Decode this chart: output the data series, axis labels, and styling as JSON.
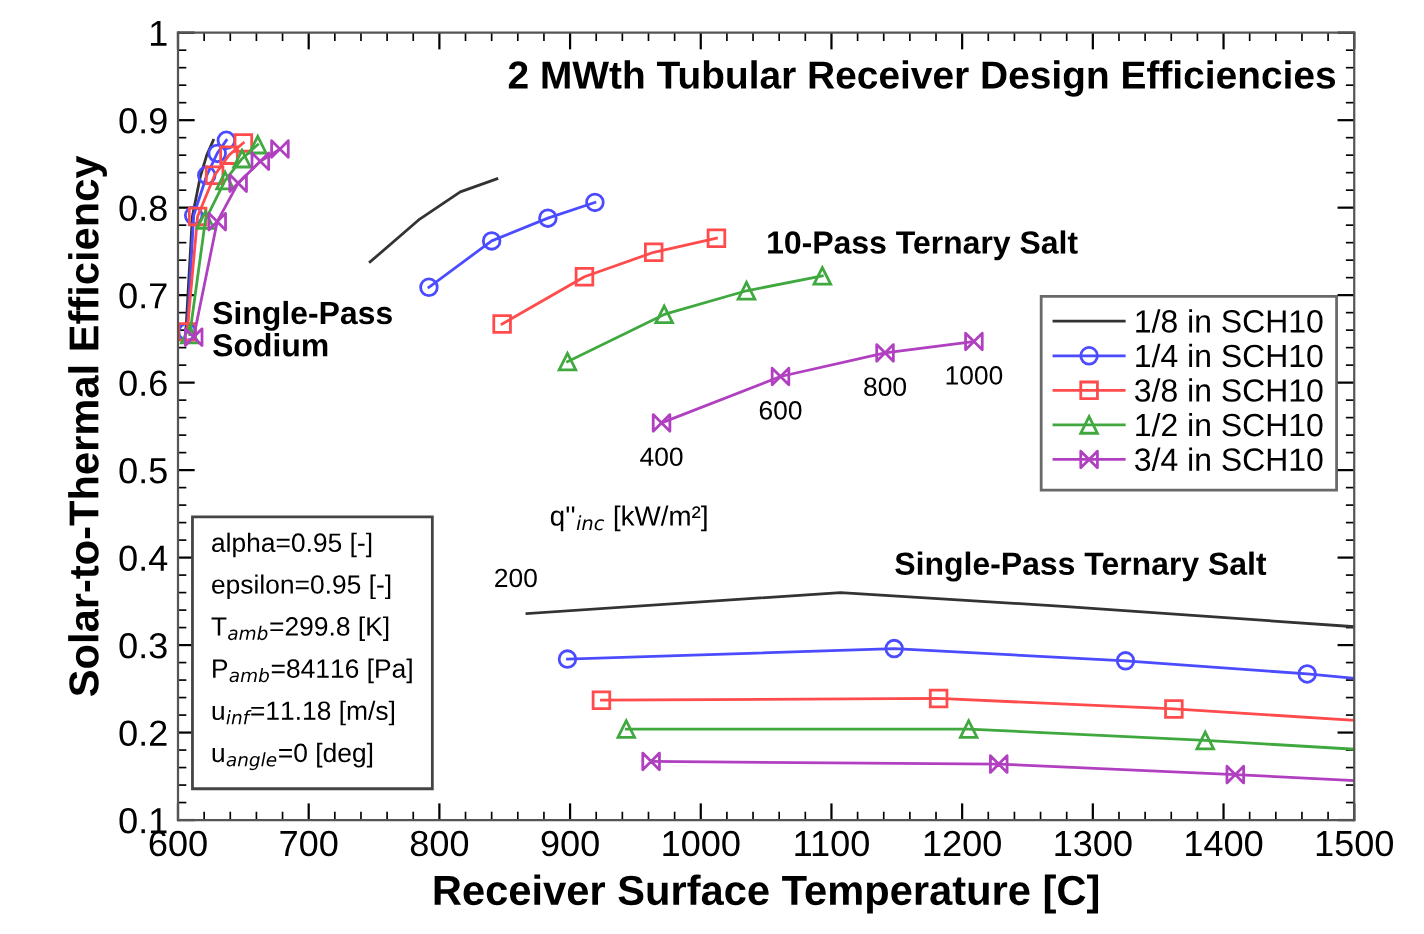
{
  "chart_data": {
    "type": "line",
    "title": "2 MWth Tubular Receiver Design Efficiencies",
    "xlabel": "Receiver Surface Temperature [C]",
    "ylabel": "Solar-to-Thermal Efficiency",
    "xlim": [
      600,
      1500
    ],
    "xticks": [
      600,
      700,
      800,
      900,
      1000,
      1100,
      1200,
      1300,
      1400,
      1500
    ],
    "ylim": [
      0.1,
      1
    ],
    "yticks": [
      0.1,
      0.2,
      0.3,
      0.4,
      0.5,
      0.6,
      0.7,
      0.8,
      0.9,
      1
    ],
    "grid": false,
    "legend": "right",
    "series": [
      {
        "name": "1/8 in SCH10",
        "color": "#333333",
        "marker": "none",
        "x": [
          606,
          611,
          617,
          622,
          627
        ],
        "values": [
          0.658,
          0.79,
          0.835,
          0.86,
          0.877
        ]
      },
      {
        "name": "1/4 in SCH10",
        "color": "#4b4bff",
        "marker": "circle",
        "x": [
          607,
          612,
          622,
          630,
          637
        ],
        "values": [
          0.658,
          0.791,
          0.837,
          0.862,
          0.877
        ]
      },
      {
        "name": "3/8 in SCH10",
        "color": "#ff4b4b",
        "marker": "square",
        "x": [
          607,
          615,
          628,
          639,
          650
        ],
        "values": [
          0.658,
          0.79,
          0.837,
          0.86,
          0.874
        ]
      },
      {
        "name": "1/2 in SCH10",
        "color": "#3fa83f",
        "marker": "triangle",
        "x": [
          609,
          621,
          636,
          649,
          661
        ],
        "values": [
          0.655,
          0.786,
          0.831,
          0.856,
          0.872
        ]
      },
      {
        "name": "3/4 in SCH10",
        "color": "#b040c0",
        "marker": "diamond",
        "x": [
          612,
          630,
          646,
          663,
          678
        ],
        "values": [
          0.652,
          0.784,
          0.828,
          0.853,
          0.867
        ]
      },
      {
        "color": "#333333",
        "marker": "none",
        "x": [
          747,
          785,
          816,
          844
        ],
        "values": [
          0.738,
          0.787,
          0.818,
          0.833
        ]
      },
      {
        "color": "#4b4bff",
        "marker": "circle",
        "x": [
          792,
          840,
          883,
          919
        ],
        "values": [
          0.709,
          0.762,
          0.788,
          0.806
        ]
      },
      {
        "color": "#ff4b4b",
        "marker": "square",
        "x": [
          848,
          911,
          964,
          1012
        ],
        "values": [
          0.667,
          0.721,
          0.749,
          0.765
        ]
      },
      {
        "color": "#3fa83f",
        "marker": "triangle",
        "x": [
          898,
          972,
          1035,
          1093
        ],
        "values": [
          0.624,
          0.678,
          0.705,
          0.722
        ]
      },
      {
        "color": "#b040c0",
        "marker": "diamond",
        "x": [
          970,
          1061,
          1141,
          1209
        ],
        "values": [
          0.554,
          0.607,
          0.634,
          0.647
        ]
      },
      {
        "color": "#333333",
        "marker": "none",
        "x": [
          867,
          1107,
          1280,
          1500
        ],
        "values": [
          0.336,
          0.36,
          0.344,
          0.321
        ]
      },
      {
        "color": "#4b4bff",
        "marker": "circle",
        "x": [
          898,
          1148,
          1325,
          1464,
          1500
        ],
        "values": [
          0.284,
          0.296,
          0.282,
          0.267,
          0.262
        ]
      },
      {
        "color": "#ff4b4b",
        "marker": "square",
        "x": [
          924,
          1182,
          1362,
          1500
        ],
        "values": [
          0.237,
          0.239,
          0.227,
          0.214
        ]
      },
      {
        "color": "#3fa83f",
        "marker": "triangle",
        "x": [
          943,
          1205,
          1386,
          1500
        ],
        "values": [
          0.204,
          0.204,
          0.191,
          0.181
        ]
      },
      {
        "color": "#b040c0",
        "marker": "diamond",
        "x": [
          962,
          1228,
          1409,
          1500
        ],
        "values": [
          0.167,
          0.164,
          0.152,
          0.145
        ]
      }
    ],
    "annotations": [
      "Single-Pass\nSodium",
      "10-Pass Ternary Salt",
      "Single-Pass Ternary Salt",
      "q''$_{inc}$ [kW/m²]",
      {
        "text": "200",
        "x": 867,
        "y": 0.336
      },
      {
        "text": "400",
        "x": 970,
        "y": 0.554
      },
      {
        "text": "600",
        "x": 1061,
        "y": 0.607
      },
      {
        "text": "800",
        "x": 1141,
        "y": 0.634
      },
      {
        "text": "1000",
        "x": 1209,
        "y": 0.647
      },
      "alpha=0.95 [-]\nepsilon=0.95 [-]\nT$_{amb}$=299.8 [K]\nP$_{amb}$=84116 [Pa]\nu$_{inf}$=11.18 [m/s]\nu$_{angle}$=0 [deg]"
    ]
  }
}
